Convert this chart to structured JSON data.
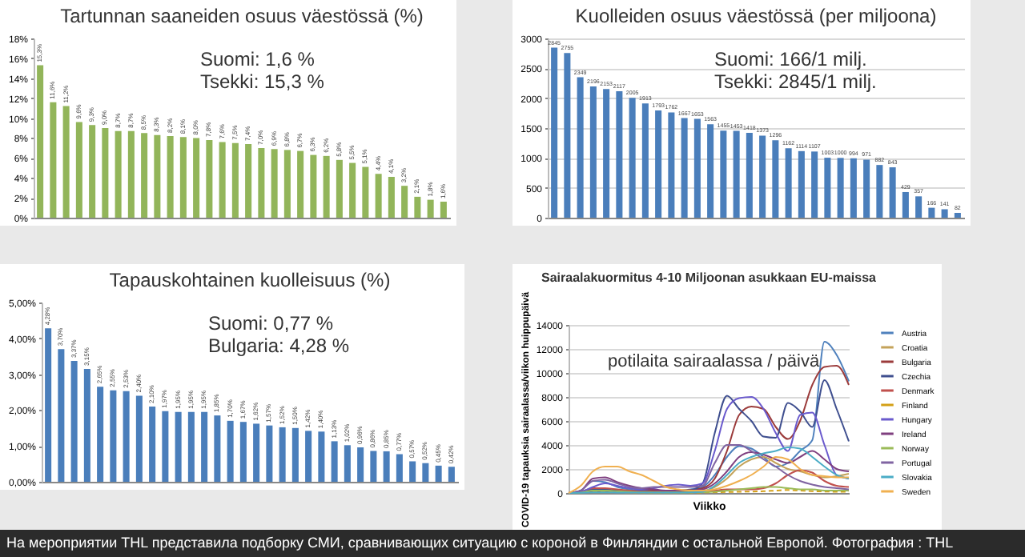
{
  "chart_data": [
    {
      "type": "bar",
      "title": "Tartunnan saaneiden osuus väestössä (%)",
      "annotations": [
        "Suomi: 1,6 %",
        "Tsekki: 15,3 %"
      ],
      "categories": [
        null,
        null,
        null,
        null,
        null,
        null,
        null,
        null,
        null,
        null,
        null,
        null,
        null,
        null,
        null,
        null,
        null,
        null,
        null,
        null,
        null,
        null,
        null,
        null,
        null,
        null,
        null,
        null,
        null,
        null,
        null,
        null
      ],
      "color": "#92b55a",
      "values": [
        15.3,
        11.6,
        11.2,
        9.6,
        9.3,
        9.0,
        8.7,
        8.7,
        8.5,
        8.3,
        8.2,
        8.1,
        8.0,
        7.8,
        7.6,
        7.5,
        7.4,
        7.0,
        6.9,
        6.8,
        6.7,
        6.3,
        6.2,
        5.8,
        5.5,
        5.1,
        4.4,
        4.1,
        3.2,
        2.1,
        1.8,
        1.6
      ],
      "value_labels": [
        "15,3%",
        "11,6%",
        "11,2%",
        "9,6%",
        "9,3%",
        "9,0%",
        "8,7%",
        "8,7%",
        "8,5%",
        "8,3%",
        "8,2%",
        "8,1%",
        "8,0%",
        "7,8%",
        "7,6%",
        "7,5%",
        "7,4%",
        "7,0%",
        "6,9%",
        "6,8%",
        "6,7%",
        "6,3%",
        "6,2%",
        "5,8%",
        "5,5%",
        "5,1%",
        "4,4%",
        "4,1%",
        "3,2%",
        "2,1%",
        "1,8%",
        "1,6%"
      ],
      "ylim": [
        0,
        18
      ],
      "yticks": [
        {
          "value": 0,
          "label": "0%"
        },
        {
          "value": 2,
          "label": "2%"
        },
        {
          "value": 4,
          "label": "4%"
        },
        {
          "value": 6,
          "label": "6%"
        },
        {
          "value": 8,
          "label": "8%"
        },
        {
          "value": 10,
          "label": "10%"
        },
        {
          "value": 12,
          "label": "12%"
        },
        {
          "value": 14,
          "label": "14%"
        },
        {
          "value": 16,
          "label": "16%"
        },
        {
          "value": 18,
          "label": "18%"
        }
      ]
    },
    {
      "type": "bar",
      "title": "Kuolleiden osuus väestössä (per miljoona)",
      "annotations": [
        "Suomi: 166/1 milj.",
        "Tsekki: 2845/1 milj."
      ],
      "categories": [
        null,
        null,
        null,
        null,
        null,
        null,
        null,
        null,
        null,
        null,
        null,
        null,
        null,
        null,
        null,
        null,
        null,
        null,
        null,
        null,
        null,
        null,
        null,
        null,
        null,
        null,
        null,
        null,
        null,
        null,
        null,
        null
      ],
      "color": "#4a7ebb",
      "values": [
        2845,
        2755,
        2349,
        2196,
        2153,
        2117,
        2005,
        1913,
        1793,
        1762,
        1667,
        1653,
        1563,
        1455,
        1453,
        1418,
        1373,
        1296,
        1162,
        1114,
        1107,
        1003,
        1000,
        994,
        971,
        882,
        843,
        429,
        357,
        166,
        141,
        82
      ],
      "data_labels": true,
      "ylim": [
        0,
        3000
      ],
      "yticks": [
        0,
        500,
        1000,
        1500,
        2000,
        2500,
        3000
      ],
      "grid": "y"
    },
    {
      "type": "bar",
      "title": "Tapauskohtainen kuolleisuus (%)",
      "annotations": [
        "Suomi: 0,77 %",
        "Bulgaria: 4,28 %"
      ],
      "categories": [
        null,
        null,
        null,
        null,
        null,
        null,
        null,
        null,
        null,
        null,
        null,
        null,
        null,
        null,
        null,
        null,
        null,
        null,
        null,
        null,
        null,
        null,
        null,
        null,
        null,
        null,
        null,
        null,
        null,
        null,
        null,
        null
      ],
      "color": "#4a7ebb",
      "values": [
        4.28,
        3.7,
        3.37,
        3.15,
        2.65,
        2.55,
        2.53,
        2.4,
        2.1,
        1.97,
        1.95,
        1.95,
        1.95,
        1.85,
        1.7,
        1.67,
        1.62,
        1.57,
        1.52,
        1.5,
        1.42,
        1.4,
        1.13,
        1.02,
        0.96,
        0.86,
        0.85,
        0.77,
        0.57,
        0.52,
        0.45,
        0.42
      ],
      "value_labels": [
        "4,28%",
        "3,70%",
        "3,37%",
        "3,15%",
        "2,65%",
        "2,55%",
        "2,53%",
        "2,40%",
        "2,10%",
        "1,97%",
        "1,95%",
        "1,95%",
        "1,95%",
        "1,85%",
        "1,70%",
        "1,67%",
        "1,62%",
        "1,57%",
        "1,52%",
        "1,50%",
        "1,42%",
        "1,40%",
        "1,13%",
        "1,02%",
        "0,96%",
        "0,86%",
        "0,85%",
        "0,77%",
        "0,57%",
        "0,52%",
        "0,45%",
        "0,42%"
      ],
      "ylim": [
        0,
        5
      ],
      "yticks": [
        {
          "value": 0,
          "label": "0,00%"
        },
        {
          "value": 1,
          "label": "1,00%"
        },
        {
          "value": 2,
          "label": "2,00%"
        },
        {
          "value": 3,
          "label": "3,00%"
        },
        {
          "value": 4,
          "label": "4,00%"
        },
        {
          "value": 5,
          "label": "5,00%"
        }
      ]
    },
    {
      "type": "line",
      "title": "Sairaalakuormitus 4-10 Miljoonan asukkaan EU-maissa",
      "xlabel": "Viikko",
      "ylabel": "COVID-19 tapauksia sairaalassa/viikon huippupäivä",
      "annotations": [
        "potilaita sairaalassa / päivä",
        "На мероприятии THL представила подборку СМИ, сравнивающих ситуацию с короной в Финляндии с остальной Европой. Фотография : THL"
      ],
      "categories": [
        null,
        null,
        null,
        null,
        null,
        null,
        null,
        null,
        null,
        null,
        null,
        null,
        null,
        null,
        null,
        null,
        null,
        null,
        null,
        null,
        null,
        null,
        null,
        null
      ],
      "ylim": [
        0,
        14000
      ],
      "yticks": [
        0,
        2000,
        4000,
        6000,
        8000,
        10000,
        12000,
        14000
      ],
      "grid": "y",
      "legend": "right",
      "series": [
        {
          "name": "Austria",
          "color": "#4f81bd",
          "values": [
            0,
            200,
            1000,
            900,
            500,
            300,
            200,
            200,
            200,
            200,
            300,
            500,
            1500,
            3000,
            3900,
            3700,
            3000,
            2200,
            2500,
            3500,
            4400,
            12600,
            11500,
            9300
          ]
        },
        {
          "name": "Croatia",
          "color": "#c4a35a",
          "values": [
            0,
            50,
            100,
            100,
            80,
            50,
            50,
            50,
            50,
            50,
            80,
            150,
            500,
            1200,
            2200,
            2800,
            3000,
            2500,
            2000,
            1800,
            1500,
            1300,
            1400,
            1600
          ]
        },
        {
          "name": "Bulgaria",
          "color": "#9b3b3b",
          "values": [
            0,
            50,
            100,
            150,
            150,
            150,
            150,
            200,
            200,
            200,
            250,
            400,
            1200,
            3500,
            6500,
            7200,
            7000,
            5500,
            4500,
            6000,
            9000,
            10500,
            10600,
            9000
          ]
        },
        {
          "name": "Czechia",
          "color": "#3f4f8f",
          "values": [
            0,
            100,
            300,
            300,
            200,
            150,
            100,
            100,
            100,
            100,
            200,
            800,
            5000,
            8100,
            7000,
            6000,
            4700,
            4600,
            7500,
            6800,
            5500,
            9400,
            7000,
            4300
          ]
        },
        {
          "name": "Denmark",
          "color": "#c0504d",
          "values": [
            0,
            100,
            400,
            400,
            300,
            200,
            100,
            100,
            100,
            100,
            100,
            100,
            200,
            300,
            300,
            300,
            400,
            800,
            1500,
            1900,
            1700,
            1000,
            600,
            500
          ]
        },
        {
          "name": "Finland",
          "color": "#d4a017",
          "line_style": "dashed",
          "values": [
            0,
            50,
            100,
            100,
            80,
            50,
            30,
            30,
            30,
            30,
            30,
            40,
            60,
            80,
            100,
            120,
            150,
            200,
            250,
            200,
            150,
            120,
            100,
            100
          ]
        },
        {
          "name": "Hungary",
          "color": "#6a5acd",
          "values": [
            0,
            100,
            500,
            800,
            600,
            400,
            300,
            400,
            600,
            700,
            600,
            800,
            3500,
            7000,
            7900,
            8000,
            7000,
            5000,
            3500,
            6500,
            6700,
            4000,
            1500,
            1200
          ]
        },
        {
          "name": "Ireland",
          "color": "#7f3f7f",
          "values": [
            0,
            200,
            1200,
            1300,
            900,
            600,
            400,
            300,
            200,
            200,
            200,
            300,
            800,
            1800,
            3000,
            3400,
            3200,
            2800,
            2500,
            3000,
            3500,
            2800,
            2000,
            1800
          ]
        },
        {
          "name": "Norway",
          "color": "#9bbb59",
          "values": [
            0,
            30,
            200,
            200,
            150,
            100,
            60,
            50,
            50,
            50,
            50,
            60,
            100,
            200,
            300,
            400,
            500,
            500,
            400,
            300,
            300,
            200,
            200,
            200
          ]
        },
        {
          "name": "Portugal",
          "color": "#8064a2",
          "values": [
            0,
            200,
            1000,
            1100,
            800,
            500,
            400,
            500,
            500,
            500,
            500,
            600,
            2500,
            4000,
            4000,
            3500,
            2800,
            2200,
            1500,
            1000,
            700,
            500,
            400,
            300
          ]
        },
        {
          "name": "Slovakia",
          "color": "#4bacc6",
          "values": [
            0,
            20,
            50,
            50,
            40,
            30,
            30,
            30,
            30,
            30,
            50,
            100,
            600,
            1500,
            2500,
            3000,
            3300,
            3500,
            3800,
            3700,
            3000,
            2200,
            1500,
            1200
          ]
        },
        {
          "name": "Sweden",
          "color": "#f0b050",
          "values": [
            0,
            600,
            1800,
            2200,
            2200,
            1800,
            1500,
            1000,
            500,
            300,
            200,
            200,
            300,
            600,
            1000,
            1500,
            2200,
            3000,
            2800,
            2000,
            1500,
            1400,
            1300,
            1300
          ]
        }
      ]
    }
  ]
}
